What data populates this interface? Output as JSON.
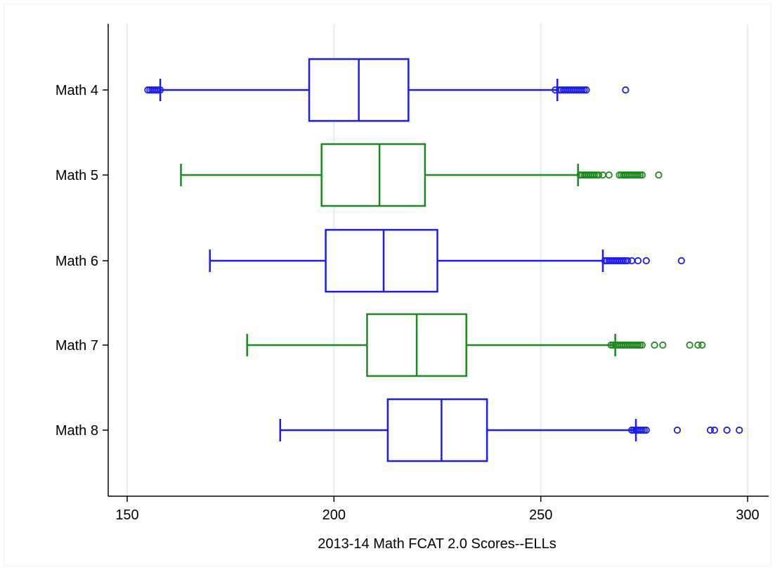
{
  "chart_data": {
    "type": "boxplot",
    "orientation": "horizontal",
    "xlabel": "2013-14 Math FCAT 2.0 Scores--ELLs",
    "xlim": [
      150,
      300
    ],
    "xticks": [
      150,
      200,
      250,
      300
    ],
    "grid": true,
    "series": [
      {
        "name": "Math 4",
        "color": "#1a1aff",
        "whisker_low": 158,
        "q1": 194,
        "median": 206,
        "q3": 218,
        "whisker_high": 254,
        "outliers": [
          155,
          155.5,
          156,
          156.5,
          157,
          157.5,
          158,
          253.5,
          254.5,
          255,
          255.5,
          256,
          256.5,
          257,
          257.5,
          258,
          258.5,
          259,
          259.5,
          260,
          260.5,
          261,
          270.5
        ]
      },
      {
        "name": "Math 5",
        "color": "#1a8a1a",
        "whisker_low": 163,
        "q1": 197,
        "median": 211,
        "q3": 222,
        "whisker_high": 259,
        "outliers": [
          259.5,
          260,
          260.5,
          261,
          261.5,
          262,
          262.5,
          263,
          263.5,
          264,
          265,
          266.5,
          269,
          269.5,
          270,
          270.5,
          271,
          271.5,
          272,
          272.5,
          273,
          273.5,
          274,
          274.5,
          278.5
        ]
      },
      {
        "name": "Math 6",
        "color": "#1a1aff",
        "whisker_low": 170,
        "q1": 198,
        "median": 212,
        "q3": 225,
        "whisker_high": 265,
        "outliers": [
          265.5,
          266,
          266.5,
          267,
          267.5,
          268,
          268.5,
          269,
          269.5,
          270,
          270.5,
          271,
          272,
          273.5,
          275.5,
          284
        ]
      },
      {
        "name": "Math 7",
        "color": "#1a8a1a",
        "whisker_low": 179,
        "q1": 208,
        "median": 220,
        "q3": 232,
        "whisker_high": 268,
        "outliers": [
          267,
          267.5,
          268,
          268.5,
          269,
          269.5,
          270,
          270.5,
          271,
          271.5,
          272,
          272.5,
          273,
          273.5,
          274,
          274.5,
          277.5,
          279.5,
          286,
          288,
          289
        ]
      },
      {
        "name": "Math 8",
        "color": "#1a1aff",
        "whisker_low": 187,
        "q1": 213,
        "median": 226,
        "q3": 237,
        "whisker_high": 273,
        "outliers": [
          272,
          272.5,
          273,
          273.5,
          274,
          274.5,
          275,
          275.5,
          283,
          291,
          292,
          295,
          298
        ]
      }
    ]
  }
}
